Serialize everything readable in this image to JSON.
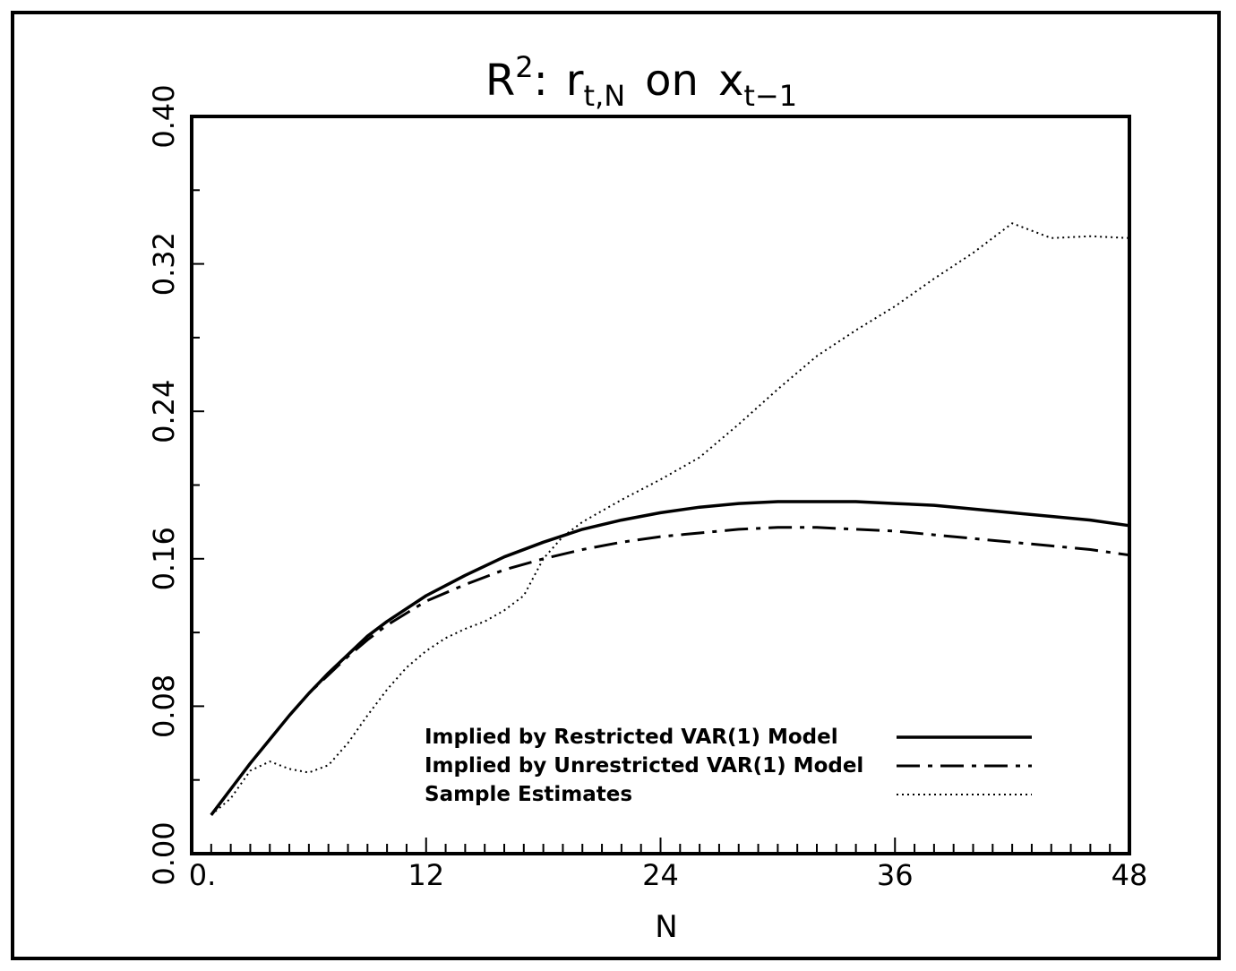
{
  "chart_data": {
    "type": "line",
    "title": {
      "main": "R",
      "sup": "2",
      "colon": ":",
      "r": "r",
      "r_sub": "t,N",
      "on": "on",
      "x": "x",
      "x_sub": "t−1"
    },
    "xlabel": "N",
    "ylabel": "",
    "xlim": [
      0,
      48
    ],
    "ylim": [
      0,
      0.4
    ],
    "x_ticks": [
      {
        "value": 0,
        "label": "0."
      },
      {
        "value": 12,
        "label": "12"
      },
      {
        "value": 24,
        "label": "24"
      },
      {
        "value": 36,
        "label": "36"
      },
      {
        "value": 48,
        "label": "48"
      }
    ],
    "y_ticks": [
      {
        "value": 0,
        "label": "0.00"
      },
      {
        "value": 0.08,
        "label": "0.08"
      },
      {
        "value": 0.16,
        "label": "0.16"
      },
      {
        "value": 0.24,
        "label": "0.24"
      },
      {
        "value": 0.32,
        "label": "0.32"
      },
      {
        "value": 0.4,
        "label": "0.40"
      }
    ],
    "grid": false,
    "legend_position": "lower-right",
    "series": [
      {
        "name": "Implied by Restricted VAR(1) Model",
        "style": "solid",
        "x": [
          1,
          2,
          3,
          4,
          5,
          6,
          7,
          8,
          9,
          10,
          12,
          14,
          16,
          18,
          20,
          22,
          24,
          26,
          28,
          30,
          32,
          34,
          36,
          38,
          40,
          42,
          44,
          46,
          48
        ],
        "y": [
          0.021,
          0.035,
          0.049,
          0.062,
          0.075,
          0.087,
          0.098,
          0.108,
          0.118,
          0.126,
          0.14,
          0.151,
          0.161,
          0.169,
          0.176,
          0.181,
          0.185,
          0.188,
          0.19,
          0.191,
          0.191,
          0.191,
          0.19,
          0.189,
          0.187,
          0.185,
          0.183,
          0.181,
          0.178
        ]
      },
      {
        "name": "Implied by Unrestricted VAR(1) Model",
        "style": "dashdot",
        "x": [
          1,
          2,
          3,
          4,
          5,
          6,
          7,
          8,
          9,
          10,
          12,
          14,
          16,
          18,
          20,
          22,
          24,
          26,
          28,
          30,
          32,
          34,
          36,
          38,
          40,
          42,
          44,
          46,
          48
        ],
        "y": [
          0.021,
          0.035,
          0.049,
          0.062,
          0.075,
          0.087,
          0.097,
          0.107,
          0.116,
          0.124,
          0.137,
          0.146,
          0.154,
          0.16,
          0.165,
          0.169,
          0.172,
          0.174,
          0.176,
          0.177,
          0.177,
          0.176,
          0.175,
          0.173,
          0.171,
          0.169,
          0.167,
          0.165,
          0.162
        ]
      },
      {
        "name": "Sample Estimates",
        "style": "dotted",
        "x": [
          1,
          2,
          3,
          4,
          5,
          6,
          7,
          8,
          9,
          10,
          11,
          12,
          13,
          14,
          15,
          16,
          17,
          18,
          19,
          20,
          22,
          24,
          26,
          28,
          30,
          32,
          34,
          36,
          38,
          40,
          42,
          44,
          46,
          48
        ],
        "y": [
          0.021,
          0.03,
          0.045,
          0.05,
          0.046,
          0.044,
          0.048,
          0.06,
          0.075,
          0.089,
          0.101,
          0.11,
          0.117,
          0.122,
          0.126,
          0.132,
          0.14,
          0.16,
          0.172,
          0.18,
          0.192,
          0.203,
          0.215,
          0.233,
          0.252,
          0.27,
          0.284,
          0.297,
          0.312,
          0.326,
          0.342,
          0.334,
          0.335,
          0.334
        ]
      }
    ]
  }
}
